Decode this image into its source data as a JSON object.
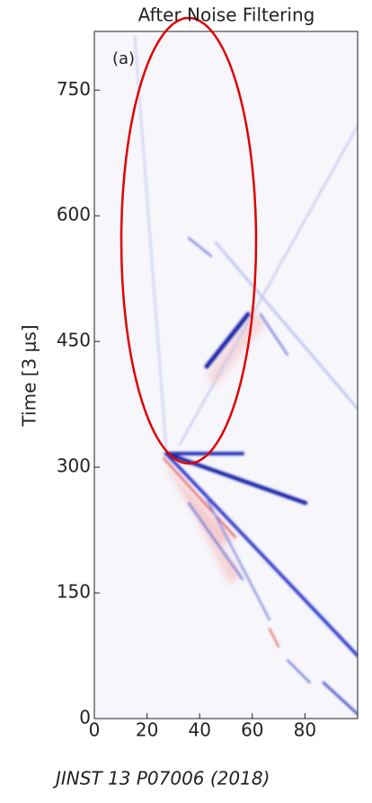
{
  "chart_data": {
    "type": "image",
    "title": "After Noise Filtering",
    "annotation": "(a)",
    "ylabel": "Time [3 μs]",
    "caption": "JINST 13 P07006 (2018)",
    "xlim": [
      0,
      100
    ],
    "xticks": [
      0,
      20,
      40,
      60,
      80
    ],
    "ylim": [
      0,
      820
    ],
    "yticks": [
      0,
      150,
      300,
      450,
      600,
      750
    ]
  }
}
